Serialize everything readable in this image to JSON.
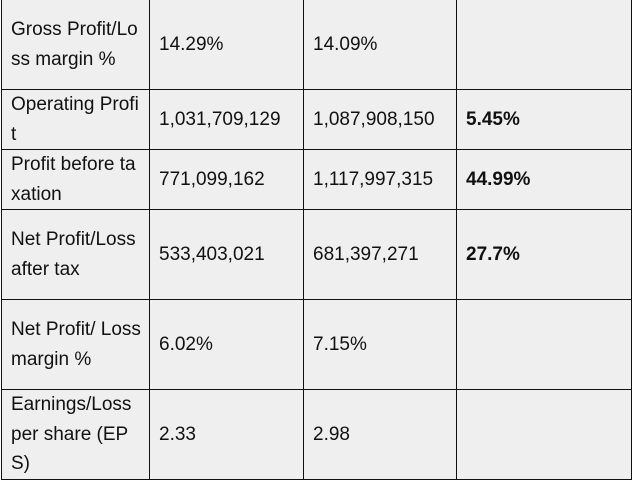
{
  "rows": [
    {
      "label": "Gross Profit/Loss margin %",
      "prev": "14.29%",
      "curr": "14.09%",
      "change": ""
    },
    {
      "label": "Operating Profit",
      "prev": "1,031,709,129",
      "curr": "1,087,908,150",
      "change": "5.45%"
    },
    {
      "label": "Profit before taxation",
      "prev": "771,099,162",
      "curr": "1,117,997,315",
      "change": "44.99%"
    },
    {
      "label": "Net Profit/Loss after tax",
      "prev": "533,403,021",
      "curr": "681,397,271",
      "change": "27.7%"
    },
    {
      "label": "Net Profit/ Loss margin %",
      "prev": "6.02%",
      "curr": "7.15%",
      "change": ""
    },
    {
      "label": "Earnings/Loss per share (EPS)",
      "prev": "2.33",
      "curr": "2.98",
      "change": ""
    }
  ]
}
